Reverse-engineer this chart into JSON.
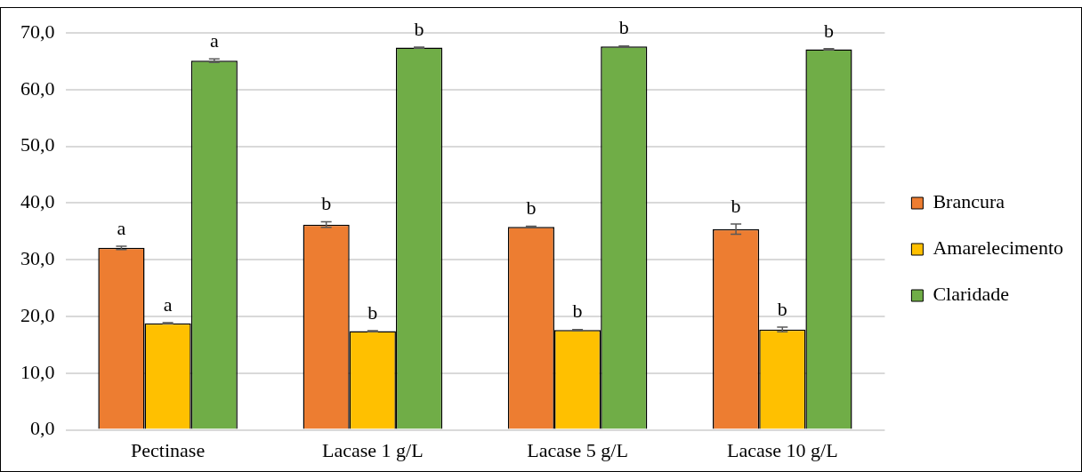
{
  "chart_data": {
    "type": "bar",
    "categories": [
      "Pectinase",
      "Lacase 1 g/L",
      "Lacase 5 g/L",
      "Lacase 10 g/L"
    ],
    "series": [
      {
        "name": "Brancura",
        "color": "#ed7d31",
        "values": [
          32.1,
          36.2,
          35.8,
          35.4
        ],
        "errors": [
          0.3,
          0.5,
          0.1,
          0.9
        ],
        "value_labels": [
          "a",
          "b",
          "b",
          "b"
        ]
      },
      {
        "name": "Amarelecimento",
        "color": "#ffc000",
        "values": [
          18.8,
          17.4,
          17.6,
          17.7
        ],
        "errors": [
          0.1,
          0.1,
          0.1,
          0.4
        ],
        "value_labels": [
          "a",
          "b",
          "b",
          "b"
        ]
      },
      {
        "name": "Claridade",
        "color": "#70ad47",
        "values": [
          65.1,
          67.4,
          67.6,
          67.1
        ],
        "errors": [
          0.3,
          0.1,
          0.1,
          0.1
        ],
        "value_labels": [
          "a",
          "b",
          "b",
          "b"
        ]
      }
    ],
    "ylim": [
      0,
      70
    ],
    "yticks": [
      {
        "value": 0,
        "label": "0,0"
      },
      {
        "value": 10,
        "label": "10,0"
      },
      {
        "value": 20,
        "label": "20,0"
      },
      {
        "value": 30,
        "label": "30,0"
      },
      {
        "value": 40,
        "label": "40,0"
      },
      {
        "value": 50,
        "label": "50,0"
      },
      {
        "value": 60,
        "label": "60,0"
      },
      {
        "value": 70,
        "label": "70,0"
      }
    ],
    "grid": "y",
    "legend": "right"
  }
}
